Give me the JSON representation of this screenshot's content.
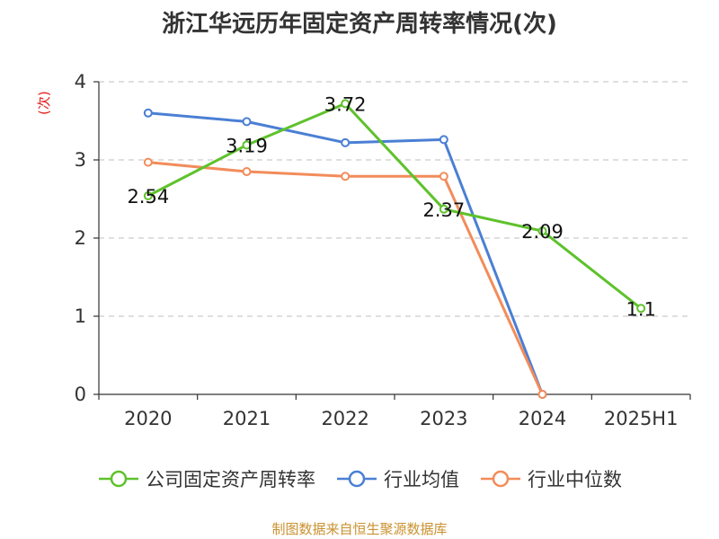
{
  "chart_data": {
    "type": "line",
    "title": "浙江华远历年固定资产周转率情况(次)",
    "ylabel": "(次)",
    "xlabel": "",
    "categories": [
      "2020",
      "2021",
      "2022",
      "2023",
      "2024",
      "2025H1"
    ],
    "ylim": [
      0,
      4
    ],
    "yticks": [
      0,
      1,
      2,
      3,
      4
    ],
    "grid": "horizontal dashed",
    "legend_position": "bottom",
    "series": [
      {
        "name": "公司固定资产周转率",
        "color": "#5ec22c",
        "values": [
          2.54,
          3.19,
          3.72,
          2.37,
          2.09,
          1.1
        ],
        "labels": [
          "2.54",
          "3.19",
          "3.72",
          "2.37",
          "2.09",
          "1.1"
        ]
      },
      {
        "name": "行业均值",
        "color": "#4a7fd4",
        "values": [
          3.6,
          3.49,
          3.22,
          3.26,
          0,
          null
        ]
      },
      {
        "name": "行业中位数",
        "color": "#f28c5a",
        "values": [
          2.97,
          2.85,
          2.79,
          2.79,
          0,
          null
        ]
      }
    ]
  },
  "source": "制图数据来自恒生聚源数据库"
}
